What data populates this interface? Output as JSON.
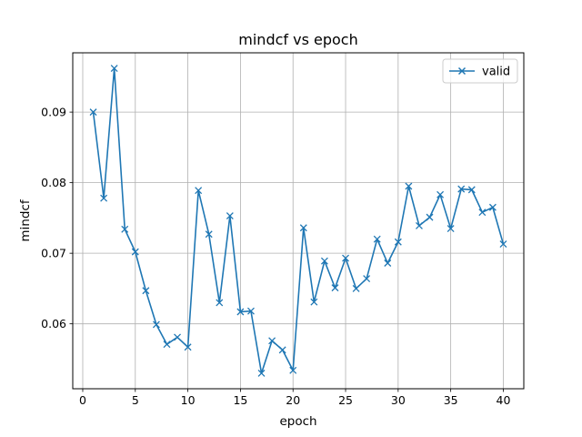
{
  "chart_data": {
    "type": "line",
    "title": "mindcf vs epoch",
    "xlabel": "epoch",
    "ylabel": "mindcf",
    "xlim": [
      -0.95,
      41.95
    ],
    "ylim": [
      0.0508,
      0.0984
    ],
    "xticks": [
      0,
      5,
      10,
      15,
      20,
      25,
      30,
      35,
      40
    ],
    "xtick_labels": [
      "0",
      "5",
      "10",
      "15",
      "20",
      "25",
      "30",
      "35",
      "40"
    ],
    "yticks": [
      0.06,
      0.07,
      0.08,
      0.09
    ],
    "ytick_labels": [
      "0.06",
      "0.07",
      "0.08",
      "0.09"
    ],
    "grid": true,
    "legend": {
      "position": "top-right"
    },
    "series": [
      {
        "name": "valid",
        "color": "#1f77b4",
        "marker": "x",
        "x": [
          1,
          2,
          3,
          4,
          5,
          6,
          7,
          8,
          9,
          10,
          11,
          12,
          13,
          14,
          15,
          16,
          17,
          18,
          19,
          20,
          21,
          22,
          23,
          24,
          25,
          26,
          27,
          28,
          29,
          30,
          31,
          32,
          33,
          34,
          35,
          36,
          37,
          38,
          39,
          40
        ],
        "y": [
          0.09,
          0.0778,
          0.0962,
          0.0734,
          0.0702,
          0.0647,
          0.0599,
          0.0571,
          0.0581,
          0.0567,
          0.0789,
          0.0727,
          0.063,
          0.0753,
          0.0617,
          0.0618,
          0.053,
          0.0576,
          0.0563,
          0.0534,
          0.0736,
          0.0631,
          0.0689,
          0.0651,
          0.0693,
          0.065,
          0.0664,
          0.072,
          0.0686,
          0.0716,
          0.0795,
          0.0739,
          0.0751,
          0.0783,
          0.0735,
          0.0791,
          0.079,
          0.0758,
          0.0765,
          0.0713
        ]
      }
    ]
  }
}
